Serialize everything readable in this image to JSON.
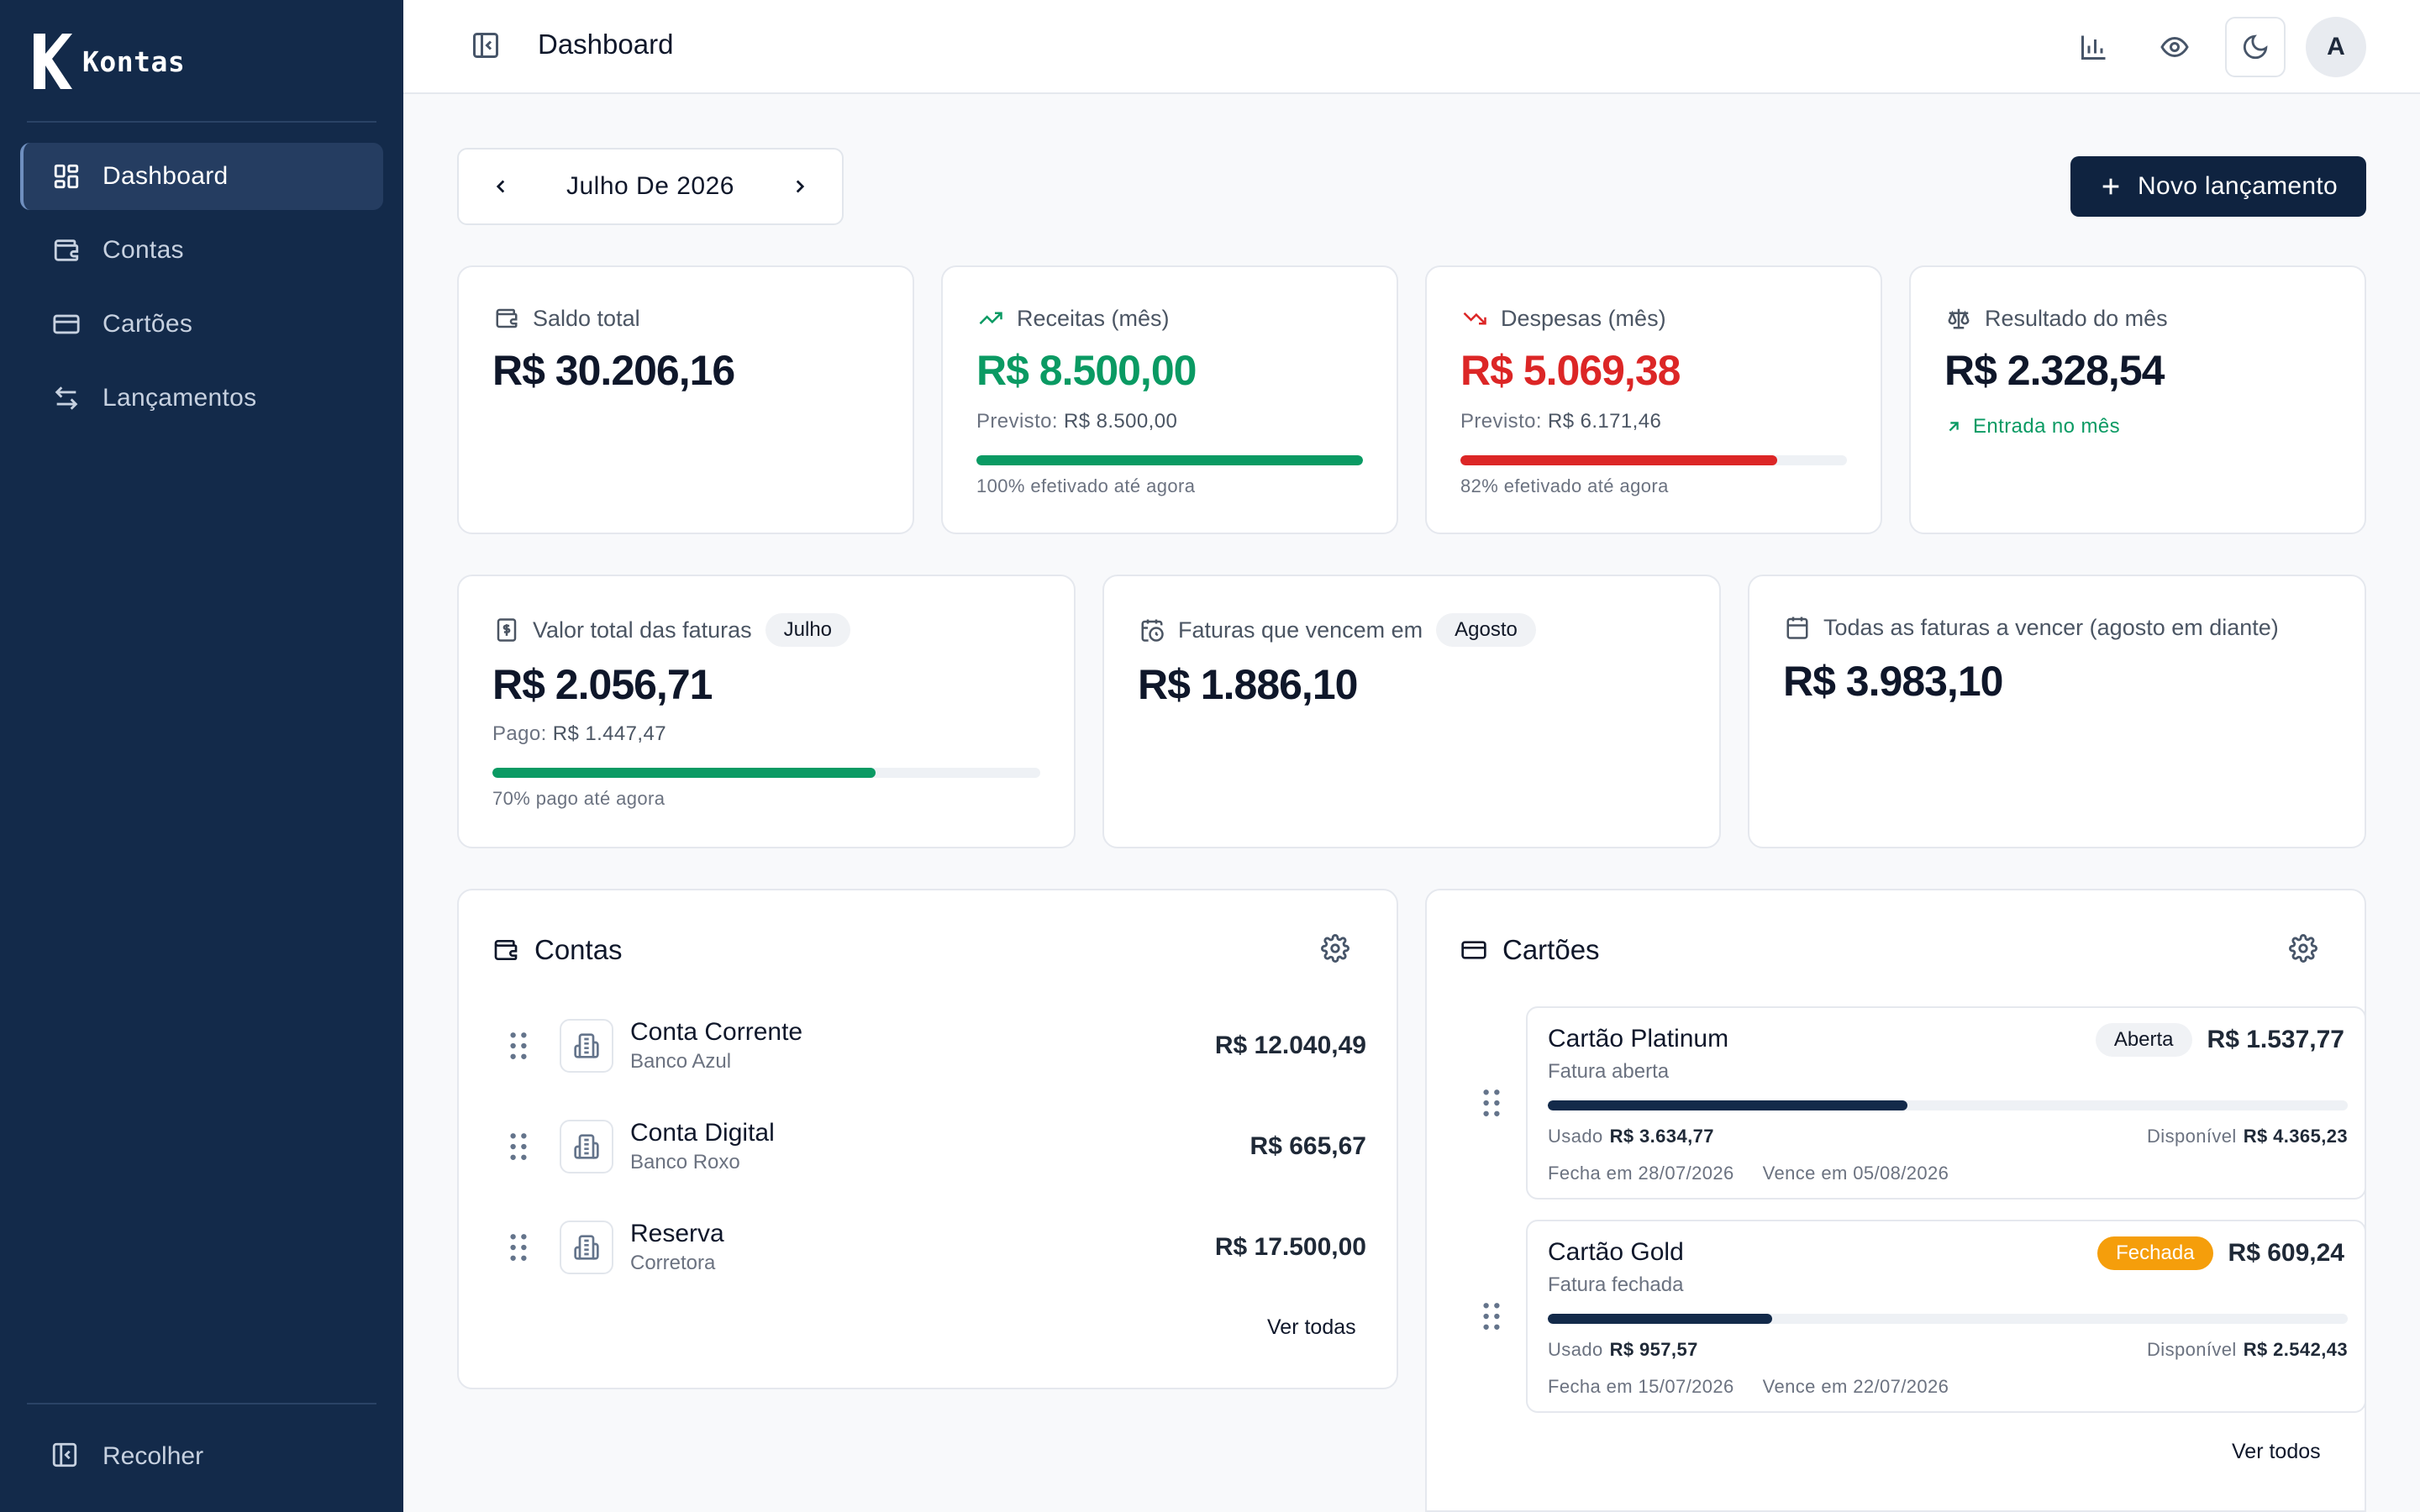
{
  "app": {
    "name": "Kontas"
  },
  "sidebar": {
    "items": [
      {
        "label": "Dashboard",
        "icon": "dashboard-icon",
        "active": true
      },
      {
        "label": "Contas",
        "icon": "wallet-icon"
      },
      {
        "label": "Cartões",
        "icon": "credit-card-icon"
      },
      {
        "label": "Lançamentos",
        "icon": "arrows-swap-icon"
      }
    ],
    "collapse_label": "Recolher"
  },
  "header": {
    "title": "Dashboard",
    "avatar_initial": "A"
  },
  "toolbar": {
    "month_label": "Julho De 2026",
    "new_entry_label": "Novo lançamento"
  },
  "summary": {
    "saldo": {
      "label": "Saldo total",
      "value": "R$ 30.206,16"
    },
    "receitas": {
      "label": "Receitas (mês)",
      "value": "R$ 8.500,00",
      "previsto_label": "Previsto:",
      "previsto_value": "R$ 8.500,00",
      "progress": 1.0,
      "progress_text": "100% efetivado até agora",
      "color": "#0a9a63"
    },
    "despesas": {
      "label": "Despesas (mês)",
      "value": "R$ 5.069,38",
      "previsto_label": "Previsto:",
      "previsto_value": "R$ 6.171,46",
      "progress": 0.82,
      "progress_text": "82% efetivado até agora",
      "color": "#dc2626"
    },
    "resultado": {
      "label": "Resultado do mês",
      "value": "R$ 2.328,54",
      "trend_text": "Entrada no mês"
    }
  },
  "faturas": {
    "total": {
      "label": "Valor total das faturas",
      "pill": "Julho",
      "value": "R$ 2.056,71",
      "pago_label": "Pago:",
      "pago_value": "R$ 1.447,47",
      "progress": 0.7,
      "progress_text": "70% pago até agora",
      "color": "#0a9a63"
    },
    "vencem": {
      "label": "Faturas que vencem em",
      "pill": "Agosto",
      "value": "R$ 1.886,10"
    },
    "todas": {
      "label": "Todas as faturas a vencer (agosto em diante)",
      "value": "R$ 3.983,10"
    }
  },
  "contas": {
    "title": "Contas",
    "items": [
      {
        "name": "Conta Corrente",
        "bank": "Banco Azul",
        "value": "R$ 12.040,49"
      },
      {
        "name": "Conta Digital",
        "bank": "Banco Roxo",
        "value": "R$ 665,67"
      },
      {
        "name": "Reserva",
        "bank": "Corretora",
        "value": "R$ 17.500,00"
      }
    ],
    "see_all": "Ver todas"
  },
  "cartoes": {
    "title": "Cartões",
    "items": [
      {
        "name": "Cartão Platinum",
        "status": "Aberta",
        "status_type": "open",
        "value": "R$ 1.537,77",
        "sub": "Fatura aberta",
        "usage": 0.45,
        "used_label": "Usado",
        "used_value": "R$ 3.634,77",
        "avail_label": "Disponível",
        "avail_value": "R$ 4.365,23",
        "fecha": "Fecha em 28/07/2026",
        "vence": "Vence em 05/08/2026"
      },
      {
        "name": "Cartão Gold",
        "status": "Fechada",
        "status_type": "closed",
        "value": "R$ 609,24",
        "sub": "Fatura fechada",
        "usage": 0.28,
        "used_label": "Usado",
        "used_value": "R$ 957,57",
        "avail_label": "Disponível",
        "avail_value": "R$ 2.542,43",
        "fecha": "Fecha em 15/07/2026",
        "vence": "Vence em 22/07/2026"
      }
    ],
    "see_all": "Ver todos"
  }
}
